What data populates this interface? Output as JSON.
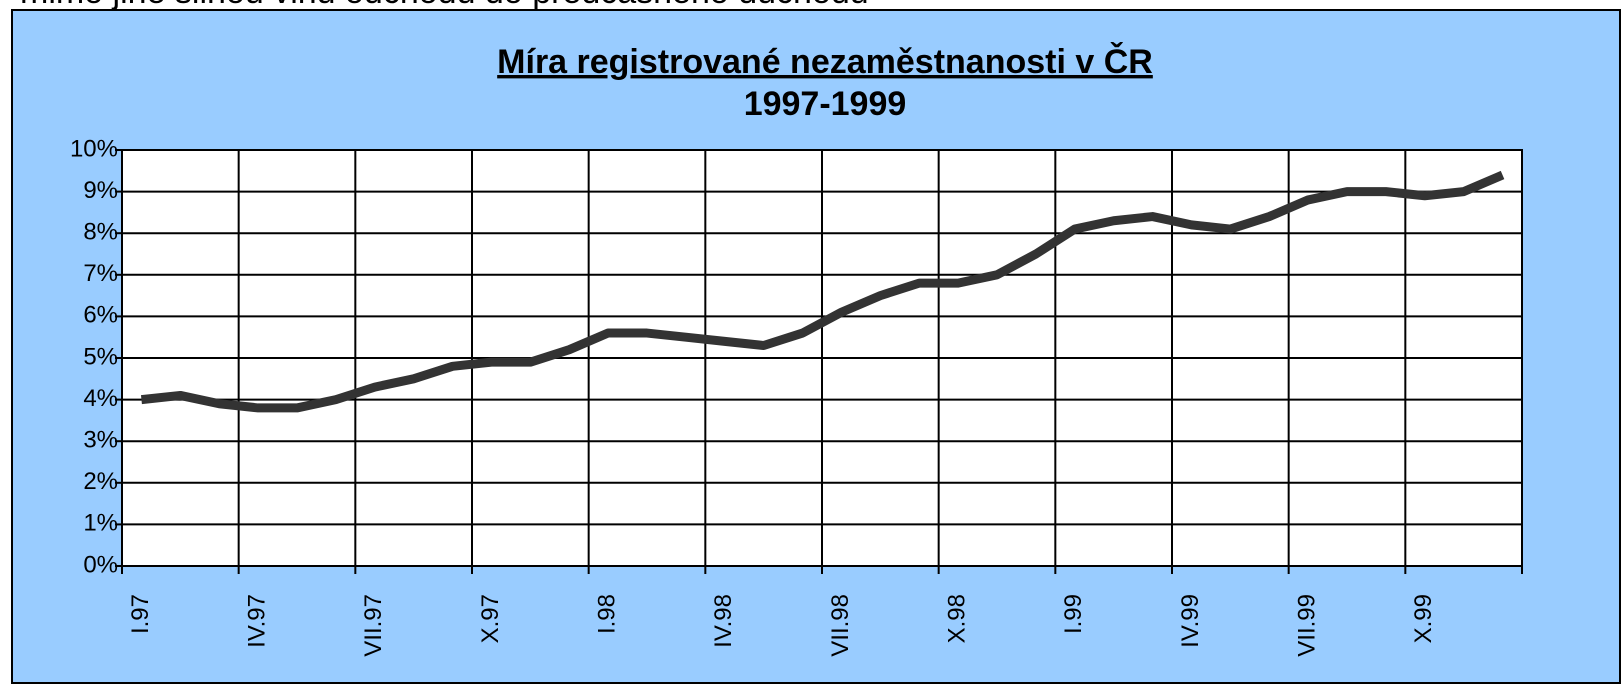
{
  "annotation": "mimo jiné silnou vlnu odchodů do předčasného důchodu",
  "chart_data": {
    "type": "line",
    "title": "Míra registrované nezaměstnanosti v ČR",
    "subtitle": "1997-1999",
    "categories": [
      "I.97",
      null,
      null,
      "IV.97",
      null,
      null,
      "VII.97",
      null,
      null,
      "X.97",
      null,
      null,
      "I.98",
      null,
      null,
      "IV.98",
      null,
      null,
      "VII.98",
      null,
      null,
      "X.98",
      null,
      null,
      "I.99",
      null,
      null,
      "IV.99",
      null,
      null,
      "VII.99",
      null,
      null,
      "X.99",
      null,
      null
    ],
    "series": [
      {
        "color": "#333333",
        "values": [
          4.0,
          4.1,
          3.9,
          3.8,
          3.8,
          4.0,
          4.3,
          4.5,
          4.8,
          4.9,
          4.9,
          5.2,
          5.6,
          5.6,
          5.5,
          5.4,
          5.3,
          5.6,
          6.1,
          6.5,
          6.8,
          6.8,
          7.0,
          7.5,
          8.1,
          8.3,
          8.4,
          8.2,
          8.1,
          8.4,
          8.8,
          9.0,
          9.0,
          8.9,
          9.0,
          9.4
        ]
      }
    ],
    "ylim": [
      0,
      10
    ],
    "yticks": [
      {
        "value": 0,
        "label": "0%"
      },
      {
        "value": 1,
        "label": "1%"
      },
      {
        "value": 2,
        "label": "2%"
      },
      {
        "value": 3,
        "label": "3%"
      },
      {
        "value": 4,
        "label": "4%"
      },
      {
        "value": 5,
        "label": "5%"
      },
      {
        "value": 6,
        "label": "6%"
      },
      {
        "value": 7,
        "label": "7%"
      },
      {
        "value": 8,
        "label": "8%"
      },
      {
        "value": 9,
        "label": "9%"
      },
      {
        "value": 10,
        "label": "10%"
      }
    ],
    "grid": true
  }
}
